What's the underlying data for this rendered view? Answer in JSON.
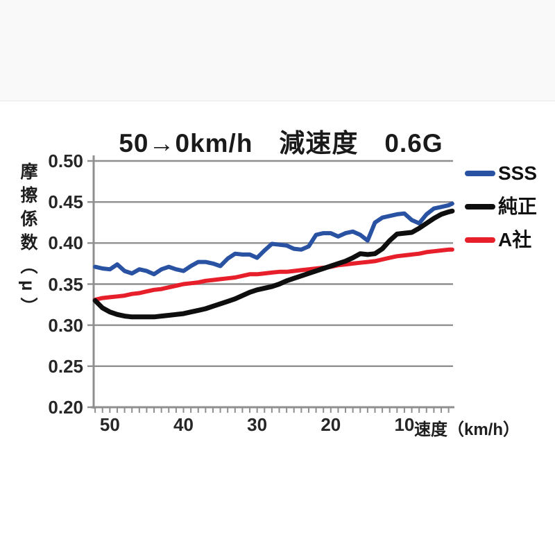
{
  "page": {
    "background": "#ffffff",
    "top_band_color": "#f9f9fa"
  },
  "chart_data": {
    "type": "line",
    "title": "50→0km/h　減速度　0.6G",
    "xlabel": "速度（km/h）",
    "ylabel": "摩擦係数（μ）",
    "x_axis_reversed": true,
    "xlim": [
      52.2,
      3.4
    ],
    "ylim": [
      0.2,
      0.5
    ],
    "x_ticks": [
      50,
      40,
      30,
      20,
      10
    ],
    "y_ticks": [
      0.5,
      0.45,
      0.4,
      0.35,
      0.3,
      0.25,
      0.2
    ],
    "minor_x_tick_step": 1,
    "grid": true,
    "legend_position": "right",
    "colors": {
      "grid": "#8f8f8f",
      "axis": "#8f8f8f",
      "title_text": "#1a1a1a",
      "tick_text": "#272727"
    },
    "x": [
      52,
      51,
      50,
      49,
      48,
      47,
      46,
      45,
      44,
      43,
      42,
      41,
      40,
      39,
      38,
      37,
      36,
      35,
      34,
      33,
      32,
      31,
      30,
      29,
      28,
      27,
      26,
      25,
      24,
      23,
      22,
      21,
      20,
      19,
      18,
      17,
      16,
      15,
      14,
      13,
      12,
      11,
      10,
      9,
      8,
      7,
      6,
      5,
      4,
      3.5
    ],
    "series": [
      {
        "name": "SSS",
        "color": "#2a52a2",
        "stroke_width": 6,
        "values": [
          0.371,
          0.369,
          0.368,
          0.374,
          0.366,
          0.363,
          0.368,
          0.366,
          0.362,
          0.368,
          0.371,
          0.368,
          0.366,
          0.372,
          0.377,
          0.377,
          0.375,
          0.372,
          0.381,
          0.387,
          0.386,
          0.386,
          0.382,
          0.391,
          0.399,
          0.398,
          0.397,
          0.393,
          0.392,
          0.396,
          0.41,
          0.412,
          0.412,
          0.408,
          0.412,
          0.414,
          0.41,
          0.403,
          0.425,
          0.431,
          0.433,
          0.435,
          0.436,
          0.428,
          0.424,
          0.435,
          0.442,
          0.444,
          0.446,
          0.448
        ]
      },
      {
        "name": "純正",
        "color": "#0e0e0e",
        "stroke_width": 7,
        "values": [
          0.33,
          0.321,
          0.316,
          0.313,
          0.311,
          0.31,
          0.31,
          0.31,
          0.31,
          0.311,
          0.312,
          0.313,
          0.314,
          0.316,
          0.318,
          0.32,
          0.323,
          0.326,
          0.329,
          0.332,
          0.336,
          0.34,
          0.343,
          0.345,
          0.347,
          0.35,
          0.354,
          0.357,
          0.36,
          0.363,
          0.366,
          0.369,
          0.372,
          0.375,
          0.378,
          0.382,
          0.387,
          0.386,
          0.387,
          0.393,
          0.403,
          0.411,
          0.412,
          0.413,
          0.418,
          0.424,
          0.43,
          0.435,
          0.438,
          0.439
        ]
      },
      {
        "name": "A社",
        "color": "#e71f2b",
        "stroke_width": 6,
        "values": [
          0.331,
          0.333,
          0.334,
          0.335,
          0.336,
          0.338,
          0.339,
          0.341,
          0.343,
          0.344,
          0.346,
          0.348,
          0.35,
          0.351,
          0.352,
          0.354,
          0.355,
          0.356,
          0.357,
          0.358,
          0.36,
          0.362,
          0.362,
          0.363,
          0.364,
          0.365,
          0.365,
          0.366,
          0.367,
          0.368,
          0.369,
          0.37,
          0.371,
          0.373,
          0.374,
          0.375,
          0.376,
          0.377,
          0.378,
          0.38,
          0.382,
          0.384,
          0.385,
          0.386,
          0.387,
          0.389,
          0.39,
          0.391,
          0.392,
          0.392
        ]
      }
    ]
  }
}
